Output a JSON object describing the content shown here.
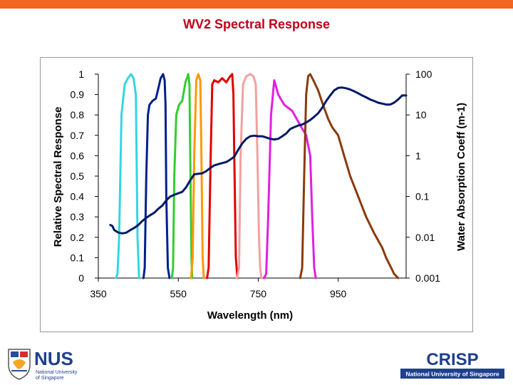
{
  "slide": {
    "title": "WV2 Spectral Response"
  },
  "logos": {
    "left": {
      "name": "NUS",
      "line1": "National University",
      "line2": "of Singapore"
    },
    "right": {
      "name": "CRISP",
      "subtitle": "National University of Singapore"
    }
  },
  "chart_data": {
    "type": "line",
    "title": "",
    "xlabel": "Wavelength (nm)",
    "ylabel": "Relative Spectral Response",
    "y2label": "Water Absorption Coeff (m-1)",
    "xlim": [
      350,
      1120
    ],
    "ylim": [
      0,
      1
    ],
    "y2lim": [
      0.001,
      100
    ],
    "y2scale": "log",
    "grid": false,
    "x_ticks": [
      350,
      550,
      750,
      950
    ],
    "y_ticks": [
      "0",
      "0.1",
      "0.2",
      "0.3",
      "0.4",
      "0.5",
      "0.6",
      "0.7",
      "0.8",
      "0.9",
      "1"
    ],
    "y2_ticks": [
      "0.001",
      "0.01",
      "0.1",
      "1",
      "10",
      "100"
    ],
    "series": [
      {
        "color": "#33d6e0",
        "x": [
          394,
          398,
          402,
          408,
          416,
          424,
          432,
          438,
          444,
          448,
          452
        ],
        "y": [
          0,
          0.02,
          0.2,
          0.8,
          0.95,
          0.98,
          1,
          0.98,
          0.9,
          0.2,
          0
        ]
      },
      {
        "color": "#001f8c",
        "x": [
          463,
          466,
          470,
          474,
          478,
          486,
          494,
          500,
          506,
          512,
          516,
          518,
          520,
          524,
          528
        ],
        "y": [
          0,
          0.05,
          0.5,
          0.8,
          0.85,
          0.87,
          0.88,
          0.93,
          0.98,
          1,
          0.97,
          0.85,
          0.4,
          0.05,
          0
        ]
      },
      {
        "color": "#33cc33",
        "x": [
          534,
          537,
          540,
          545,
          552,
          560,
          568,
          575,
          578,
          580,
          583,
          585
        ],
        "y": [
          0,
          0.05,
          0.5,
          0.8,
          0.85,
          0.87,
          0.96,
          1,
          0.95,
          0.6,
          0.1,
          0
        ]
      },
      {
        "color": "#ff9900",
        "x": [
          582,
          586,
          590,
          595,
          600,
          605,
          608,
          611,
          614
        ],
        "y": [
          0,
          0.1,
          0.6,
          0.97,
          1,
          0.97,
          0.6,
          0.1,
          0
        ]
      },
      {
        "color": "#e00000",
        "x": [
          622,
          626,
          631,
          635,
          640,
          650,
          660,
          670,
          680,
          685,
          688,
          690,
          694,
          698
        ],
        "y": [
          0,
          0.05,
          0.6,
          0.95,
          0.97,
          0.96,
          0.98,
          0.96,
          0.99,
          1,
          0.9,
          0.6,
          0.1,
          0
        ]
      },
      {
        "color": "#f2a0a0",
        "x": [
          697,
          702,
          706,
          712,
          720,
          730,
          738,
          744,
          748,
          752,
          755,
          758
        ],
        "y": [
          0,
          0.05,
          0.6,
          0.95,
          0.99,
          1,
          0.99,
          0.95,
          0.6,
          0.2,
          0.05,
          0
        ]
      },
      {
        "color": "#e020e0",
        "x": [
          764,
          770,
          775,
          782,
          790,
          800,
          815,
          835,
          855,
          870,
          880,
          885,
          890,
          894
        ],
        "y": [
          0,
          0.02,
          0.3,
          0.8,
          0.97,
          0.9,
          0.85,
          0.82,
          0.75,
          0.7,
          0.6,
          0.3,
          0.05,
          0
        ]
      },
      {
        "color": "#8b3a0a",
        "x": [
          855,
          860,
          865,
          870,
          875,
          880,
          888,
          900,
          912,
          925,
          935,
          950,
          965,
          980,
          1000,
          1020,
          1040,
          1060,
          1070,
          1080,
          1090,
          1095,
          1100
        ],
        "y": [
          0,
          0.05,
          0.5,
          0.9,
          0.99,
          1,
          0.97,
          0.92,
          0.85,
          0.78,
          0.74,
          0.7,
          0.6,
          0.5,
          0.4,
          0.3,
          0.22,
          0.15,
          0.1,
          0.06,
          0.02,
          0.01,
          0
        ]
      },
      {
        "color": "#001a66",
        "axis": "y2",
        "x": [
          380,
          385,
          390,
          395,
          400,
          410,
          420,
          430,
          440,
          450,
          460,
          470,
          480,
          490,
          500,
          510,
          520,
          530,
          540,
          550,
          560,
          570,
          580,
          590,
          600,
          610,
          620,
          630,
          640,
          650,
          660,
          670,
          680,
          690,
          700,
          710,
          720,
          730,
          740,
          750,
          760,
          770,
          780,
          790,
          800,
          810,
          820,
          830,
          840,
          850,
          860,
          870,
          880,
          890,
          900,
          910,
          920,
          930,
          940,
          950,
          960,
          970,
          980,
          990,
          1000,
          1010,
          1020,
          1030,
          1040,
          1050,
          1060,
          1070,
          1080,
          1090,
          1100,
          1110,
          1120
        ],
        "y": [
          0.02,
          0.019,
          0.015,
          0.014,
          0.013,
          0.0125,
          0.013,
          0.015,
          0.017,
          0.02,
          0.025,
          0.03,
          0.035,
          0.04,
          0.05,
          0.06,
          0.08,
          0.1,
          0.11,
          0.12,
          0.13,
          0.17,
          0.25,
          0.35,
          0.36,
          0.37,
          0.42,
          0.5,
          0.58,
          0.62,
          0.66,
          0.7,
          0.8,
          0.95,
          1.4,
          2.0,
          2.6,
          3.0,
          3.1,
          3.0,
          3.0,
          2.8,
          2.6,
          2.5,
          2.6,
          3.0,
          3.5,
          4.5,
          5.0,
          5.5,
          5.8,
          6.5,
          7.5,
          9.0,
          11,
          15,
          22,
          30,
          40,
          46,
          47,
          45,
          42,
          38,
          34,
          30,
          27,
          24,
          22,
          20,
          19,
          18,
          18,
          20,
          24,
          30,
          30
        ]
      }
    ]
  }
}
